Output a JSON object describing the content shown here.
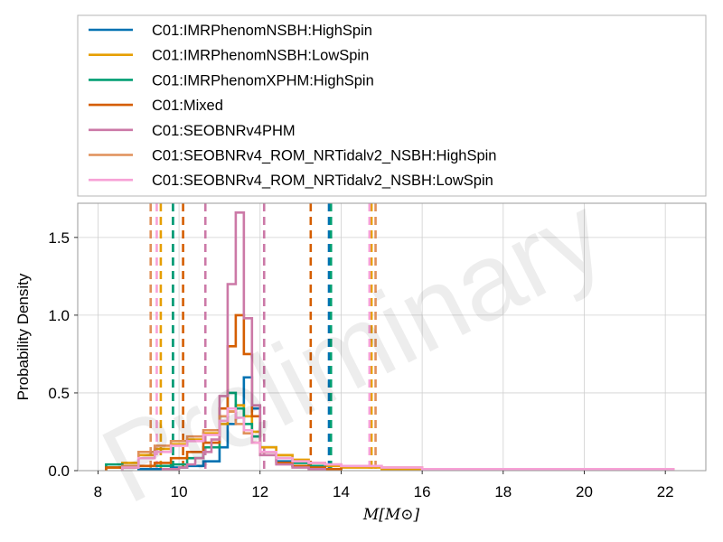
{
  "chart_data": {
    "type": "line",
    "title": "",
    "xlabel": "M[M⊙]",
    "ylabel": "Probability Density",
    "xlim": [
      7.5,
      23.0
    ],
    "ylim": [
      0,
      1.72
    ],
    "xticks": [
      8,
      10,
      12,
      14,
      16,
      18,
      20,
      22
    ],
    "yticks": [
      0.0,
      0.5,
      1.0,
      1.5
    ],
    "grid": true,
    "legend_position": "top",
    "watermark": "Preliminary",
    "series": [
      {
        "name": "C01:IMRPhenomNSBH:HighSpin",
        "color": "#0072b2",
        "bins": [
          8.2,
          8.6,
          9.0,
          9.4,
          9.8,
          10.2,
          10.6,
          11.0,
          11.2,
          11.4,
          11.6,
          11.8,
          12.0,
          12.4,
          12.8,
          13.2,
          13.6,
          14.0
        ],
        "density": [
          0.02,
          0.02,
          0.01,
          0.01,
          0.02,
          0.03,
          0.06,
          0.15,
          0.3,
          0.42,
          0.6,
          0.4,
          0.15,
          0.06,
          0.03,
          0.02,
          0.01
        ],
        "ci": [
          9.85,
          13.7
        ]
      },
      {
        "name": "C01:IMRPhenomNSBH:LowSpin",
        "color": "#e69f00",
        "bins": [
          8.2,
          8.6,
          9.0,
          9.4,
          9.8,
          10.2,
          10.6,
          11.0,
          11.2,
          11.4,
          11.6,
          11.8,
          12.0,
          12.4,
          12.8,
          13.2,
          13.6,
          14.0,
          15.0,
          16.0
        ],
        "density": [
          0.02,
          0.05,
          0.1,
          0.14,
          0.17,
          0.2,
          0.24,
          0.3,
          0.38,
          0.42,
          0.35,
          0.25,
          0.15,
          0.1,
          0.07,
          0.05,
          0.03,
          0.02,
          0.01
        ],
        "ci": [
          9.55,
          14.75
        ]
      },
      {
        "name": "C01:IMRPhenomXPHM:HighSpin",
        "color": "#009e73",
        "bins": [
          8.2,
          8.6,
          9.0,
          9.4,
          9.8,
          10.2,
          10.6,
          11.0,
          11.2,
          11.4,
          11.6,
          11.8,
          12.0,
          12.4,
          12.8,
          13.2,
          13.6,
          14.0
        ],
        "density": [
          0.04,
          0.03,
          0.03,
          0.03,
          0.04,
          0.08,
          0.15,
          0.35,
          0.5,
          0.4,
          0.3,
          0.22,
          0.12,
          0.08,
          0.05,
          0.03,
          0.01
        ],
        "ci": [
          9.85,
          13.75
        ]
      },
      {
        "name": "C01:Mixed",
        "color": "#d55e00",
        "bins": [
          8.2,
          8.6,
          9.0,
          9.4,
          9.8,
          10.2,
          10.6,
          11.0,
          11.2,
          11.4,
          11.6,
          11.8,
          12.0,
          12.4,
          12.8,
          13.2,
          13.6,
          14.0
        ],
        "density": [
          0.02,
          0.02,
          0.03,
          0.05,
          0.08,
          0.12,
          0.18,
          0.4,
          0.8,
          1.0,
          0.75,
          0.35,
          0.12,
          0.05,
          0.03,
          0.02,
          0.01
        ],
        "ci": [
          10.1,
          13.25
        ]
      },
      {
        "name": "C01:SEOBNRv4PHM",
        "color": "#cc79a7",
        "bins": [
          9.6,
          10.0,
          10.2,
          10.4,
          10.6,
          10.8,
          11.0,
          11.2,
          11.4,
          11.6,
          11.8,
          12.0,
          12.4,
          12.8,
          13.2,
          13.6
        ],
        "density": [
          0.01,
          0.02,
          0.04,
          0.08,
          0.12,
          0.2,
          0.48,
          1.2,
          1.66,
          0.98,
          0.42,
          0.1,
          0.04,
          0.02,
          0.01
        ],
        "ci": [
          10.65,
          12.1
        ]
      },
      {
        "name": "C01:SEOBNRv4_ROM_NRTidalv2_NSBH:HighSpin",
        "color": "#e0905a",
        "bins": [
          8.6,
          9.0,
          9.4,
          9.8,
          10.2,
          10.6,
          11.0,
          11.2,
          11.4,
          11.6,
          11.8,
          12.0,
          12.4,
          12.8,
          13.2,
          13.6,
          14.0,
          15.0,
          16.0,
          18.0,
          20.0,
          22.2
        ],
        "density": [
          0.03,
          0.12,
          0.16,
          0.19,
          0.22,
          0.26,
          0.35,
          0.38,
          0.3,
          0.24,
          0.18,
          0.12,
          0.08,
          0.06,
          0.05,
          0.04,
          0.03,
          0.02,
          0.01,
          0.01,
          0.01
        ],
        "ci": [
          9.3,
          14.85
        ]
      },
      {
        "name": "C01:SEOBNRv4_ROM_NRTidalv2_NSBH:LowSpin",
        "color": "#f7a1d6",
        "bins": [
          8.6,
          9.0,
          9.4,
          9.8,
          10.2,
          10.6,
          11.0,
          11.2,
          11.4,
          11.6,
          11.8,
          12.0,
          12.4,
          12.8,
          13.2,
          13.6,
          14.0,
          15.0,
          16.0,
          18.0,
          20.0,
          22.2
        ],
        "density": [
          0.02,
          0.08,
          0.12,
          0.16,
          0.19,
          0.23,
          0.32,
          0.4,
          0.34,
          0.26,
          0.18,
          0.12,
          0.08,
          0.06,
          0.05,
          0.04,
          0.03,
          0.02,
          0.01,
          0.01,
          0.01
        ],
        "ci": [
          9.45,
          14.7
        ]
      }
    ]
  }
}
